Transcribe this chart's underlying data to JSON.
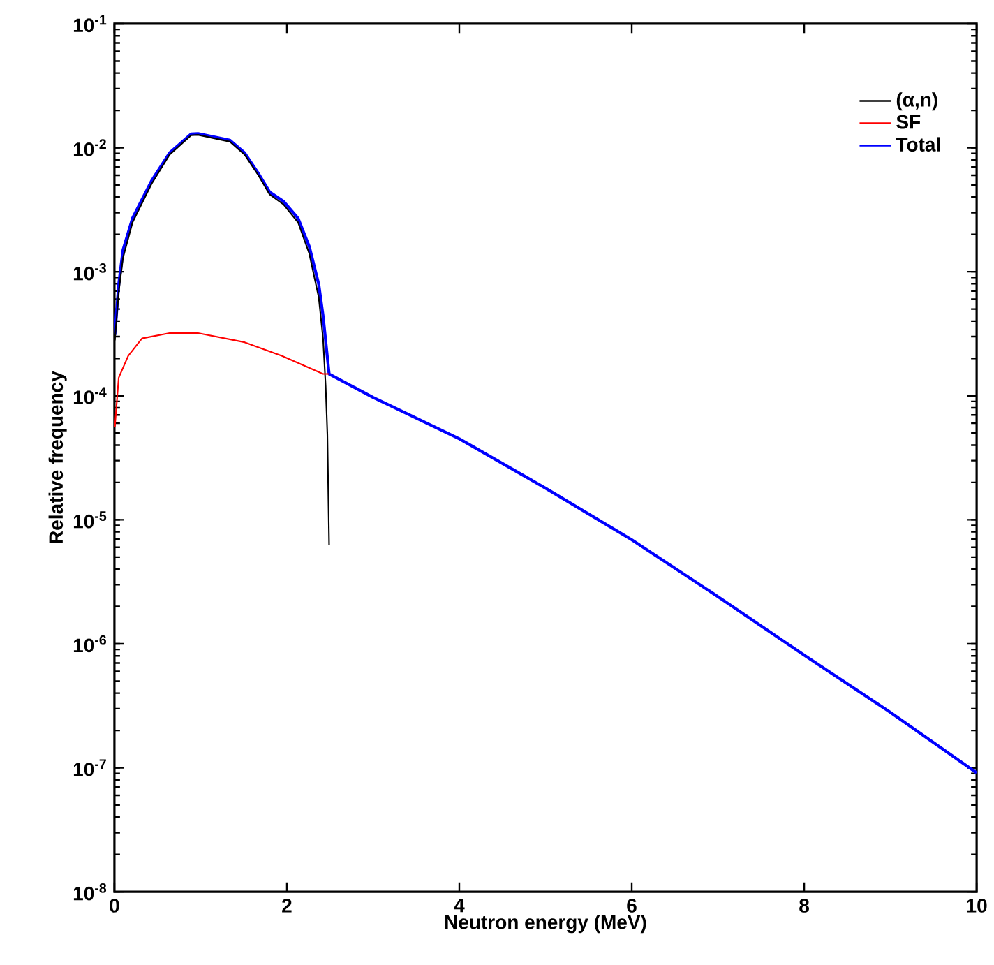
{
  "chart_data": {
    "type": "line",
    "xlabel": "Neutron energy (MeV)",
    "ylabel": "Relative frequency",
    "log": "y",
    "legend": "top right",
    "grid": false,
    "marker": "none",
    "line_style": "solid",
    "xlim": [
      0,
      10
    ],
    "xticks": [
      0,
      2,
      4,
      6,
      8,
      10
    ],
    "ylim": [
      1e-08,
      0.1
    ],
    "yticks": [
      {
        "value": 1e-08,
        "label": "10$^{-8}$"
      },
      {
        "value": 1e-07,
        "label": "10$^{-7}$"
      },
      {
        "value": 1e-06,
        "label": "10$^{-6}$"
      },
      {
        "value": 1e-05,
        "label": "10$^{-5}$"
      },
      {
        "value": 0.0001,
        "label": "10$^{-4}$"
      },
      {
        "value": 0.001,
        "label": "10$^{-3}$"
      },
      {
        "value": 0.01,
        "label": "10$^{-2}$"
      },
      {
        "value": 0.1,
        "label": "10$^{-1}$"
      }
    ],
    "series": [
      {
        "name": "(α,n)",
        "color": "#000000",
        "x": [
          0.005,
          0.05,
          0.1,
          0.21,
          0.43,
          0.64,
          0.89,
          0.97,
          1.34,
          1.51,
          1.67,
          1.8,
          1.96,
          2.13,
          2.26,
          2.37,
          2.42,
          2.45,
          2.47,
          2.49
        ],
        "values": [
          0.00028,
          0.00069,
          0.0013,
          0.0025,
          0.0051,
          0.0088,
          0.0126,
          0.0127,
          0.0112,
          0.0088,
          0.006,
          0.0042,
          0.0035,
          0.0025,
          0.0014,
          0.00062,
          0.00029,
          0.00012,
          4.9e-05,
          6.3e-06
        ]
      },
      {
        "name": "SF",
        "color": "#ff0000",
        "x": [
          0.005,
          0.05,
          0.16,
          0.32,
          0.64,
          0.97,
          1.51,
          1.94,
          2.42,
          2.49
        ],
        "values": [
          5.6e-05,
          0.00014,
          0.00021,
          0.00029,
          0.00032,
          0.00032,
          0.00027,
          0.00021,
          0.00015,
          0.00015
        ]
      },
      {
        "name": "Total",
        "color": "#0000ff",
        "x": [
          0.005,
          0.05,
          0.1,
          0.21,
          0.43,
          0.64,
          0.89,
          0.97,
          1.34,
          1.51,
          1.67,
          1.8,
          1.96,
          2.13,
          2.26,
          2.37,
          2.42,
          2.49,
          3,
          4,
          5,
          6,
          7,
          8,
          9,
          10
        ],
        "values": [
          0.00031,
          0.00079,
          0.0015,
          0.0027,
          0.0054,
          0.0091,
          0.0129,
          0.013,
          0.0115,
          0.0091,
          0.0062,
          0.0044,
          0.0037,
          0.0027,
          0.0016,
          0.00079,
          0.00044,
          0.00015,
          9.7e-05,
          4.5e-05,
          1.8e-05,
          6.9e-06,
          2.4e-06,
          8.1e-07,
          2.8e-07,
          9.1e-08
        ]
      }
    ]
  }
}
